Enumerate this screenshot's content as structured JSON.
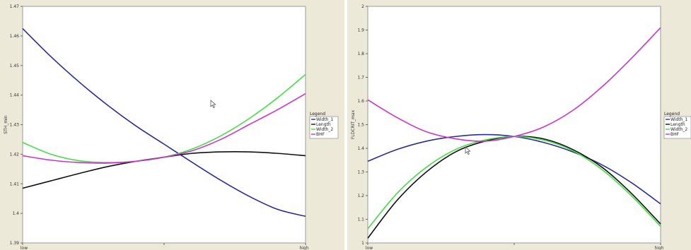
{
  "chart_data": [
    {
      "type": "line",
      "ylabel": "STH_min",
      "ylim": [
        1.39,
        1.47
      ],
      "yticks": [
        1.39,
        1.4,
        1.41,
        1.42,
        1.43,
        1.44,
        1.45,
        1.46,
        1.47
      ],
      "ytick_labels": [
        "1.39",
        "1.4",
        "1.41",
        "1.42",
        "1.43",
        "1.44",
        "1.45",
        "1.46",
        "1.47"
      ],
      "xtick_labels": [
        "low",
        "high"
      ],
      "x": [
        0,
        0.1,
        0.2,
        0.3,
        0.4,
        0.5,
        0.6,
        0.7,
        0.8,
        0.9,
        1.0
      ],
      "legend": {
        "title": "Legend",
        "position": "right"
      },
      "series": [
        {
          "name": "Width_1",
          "color": "#2b2b9a",
          "values": [
            1.4625,
            1.453,
            1.4444,
            1.4366,
            1.4296,
            1.4234,
            1.4172,
            1.4112,
            1.4058,
            1.4014,
            1.399
          ]
        },
        {
          "name": "Length",
          "color": "#111111",
          "values": [
            1.4085,
            1.411,
            1.4135,
            1.4158,
            1.4176,
            1.419,
            1.4203,
            1.4208,
            1.4208,
            1.4203,
            1.4195
          ]
        },
        {
          "name": "Width_2",
          "color": "#44dd44",
          "values": [
            1.424,
            1.42,
            1.4178,
            1.4172,
            1.4176,
            1.419,
            1.4218,
            1.4262,
            1.432,
            1.439,
            1.447
          ]
        },
        {
          "name": "BHF",
          "color": "#cc33cc",
          "values": [
            1.4195,
            1.418,
            1.4172,
            1.417,
            1.4176,
            1.419,
            1.4212,
            1.425,
            1.43,
            1.435,
            1.4405
          ]
        }
      ]
    },
    {
      "type": "line",
      "ylabel": "FLDCRIT_max",
      "ylim": [
        1.0,
        2.0
      ],
      "yticks": [
        1.0,
        1.1,
        1.2,
        1.3,
        1.4,
        1.5,
        1.6,
        1.7,
        1.8,
        1.9,
        2.0
      ],
      "ytick_labels": [
        "1",
        "1.1",
        "1.2",
        "1.3",
        "1.4",
        "1.5",
        "1.6",
        "1.7",
        "1.8",
        "1.9",
        "2"
      ],
      "xtick_labels": [
        "low",
        "high"
      ],
      "x": [
        0,
        0.1,
        0.2,
        0.3,
        0.4,
        0.5,
        0.6,
        0.7,
        0.8,
        0.9,
        1.0
      ],
      "legend": {
        "title": "Legend",
        "position": "right"
      },
      "series": [
        {
          "name": "Width_1",
          "color": "#2b2b9a",
          "values": [
            1.345,
            1.395,
            1.43,
            1.45,
            1.458,
            1.45,
            1.425,
            1.385,
            1.33,
            1.255,
            1.165
          ]
        },
        {
          "name": "Length",
          "color": "#111111",
          "values": [
            1.02,
            1.18,
            1.3,
            1.385,
            1.43,
            1.45,
            1.44,
            1.395,
            1.32,
            1.21,
            1.08
          ]
        },
        {
          "name": "Width_2",
          "color": "#44dd44",
          "values": [
            1.06,
            1.21,
            1.32,
            1.395,
            1.435,
            1.45,
            1.435,
            1.39,
            1.31,
            1.2,
            1.07
          ]
        },
        {
          "name": "BHF",
          "color": "#cc33cc",
          "values": [
            1.605,
            1.53,
            1.47,
            1.44,
            1.43,
            1.45,
            1.49,
            1.56,
            1.66,
            1.78,
            1.91
          ]
        }
      ]
    }
  ]
}
